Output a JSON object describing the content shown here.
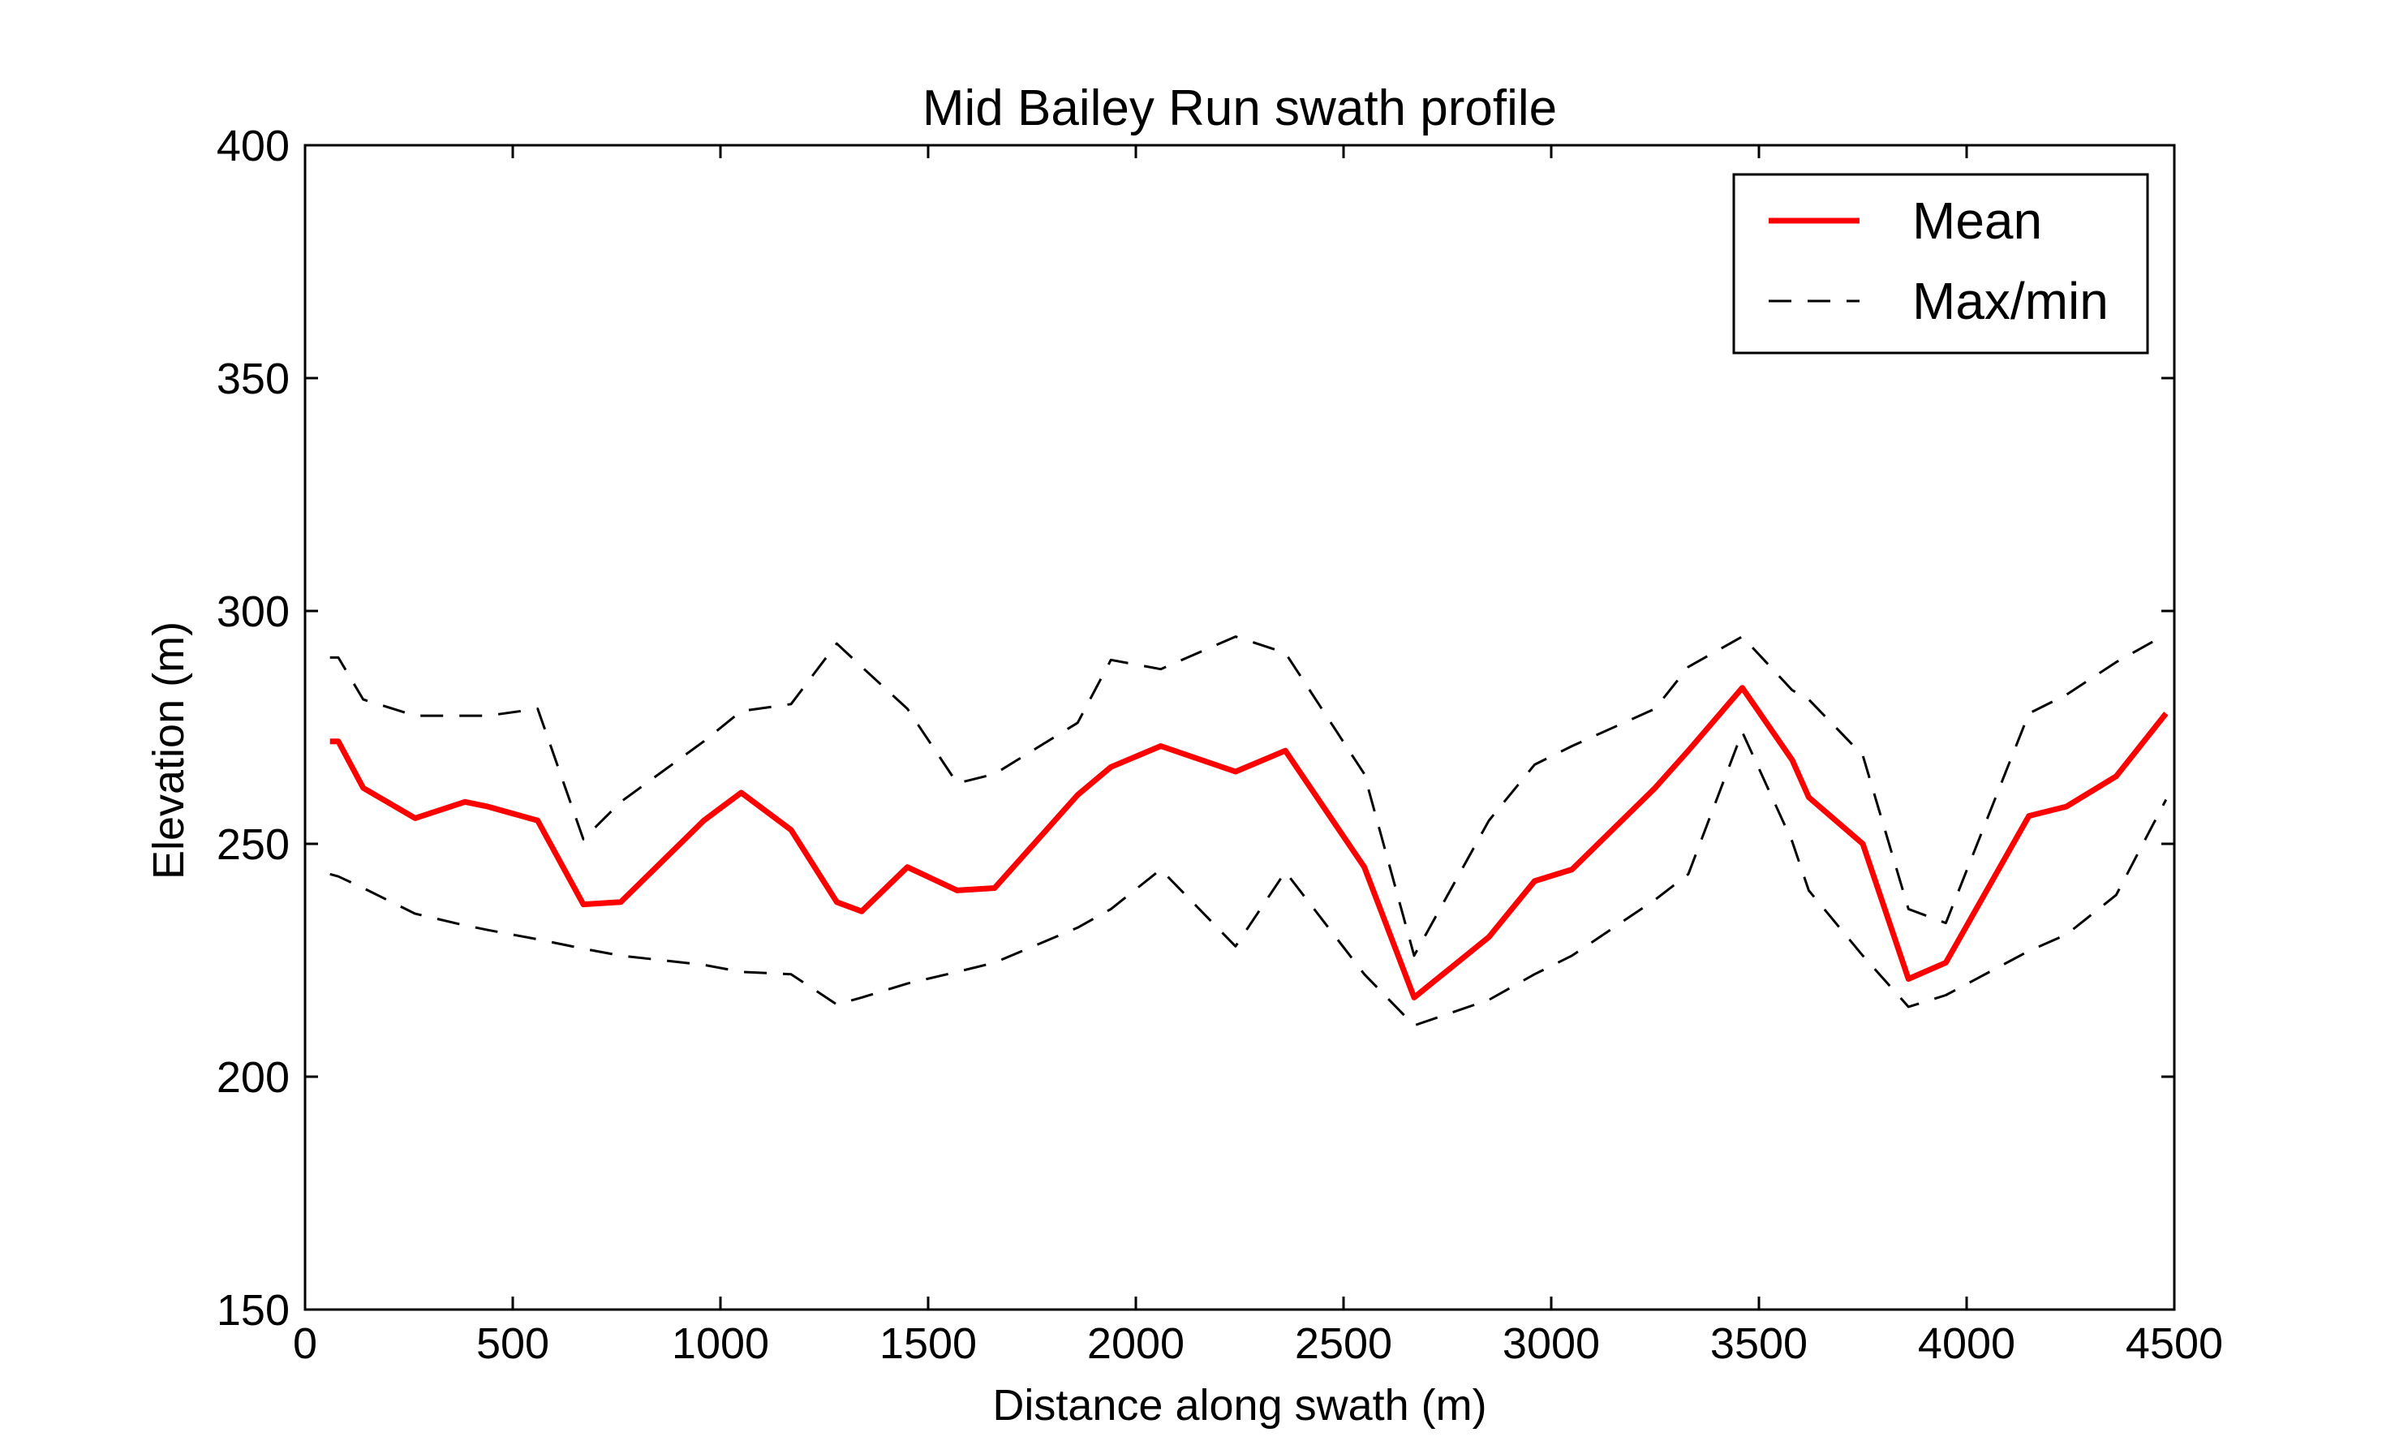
{
  "chart_data": {
    "type": "line",
    "title": "Mid Bailey Run swath profile",
    "xlabel": "Distance along swath (m)",
    "ylabel": "Elevation (m)",
    "xlim": [
      0,
      4500
    ],
    "ylim": [
      150,
      400
    ],
    "x_ticks": [
      0,
      500,
      1000,
      1500,
      2000,
      2500,
      3000,
      3500,
      4000,
      4500
    ],
    "y_ticks": [
      150,
      200,
      250,
      300,
      350,
      400
    ],
    "x_tick_labels": [
      "0",
      "500",
      "1000",
      "1500",
      "2000",
      "2500",
      "3000",
      "3500",
      "4000",
      "4500"
    ],
    "y_tick_labels": [
      "150",
      "200",
      "250",
      "300",
      "350",
      "400"
    ],
    "grid": false,
    "legend_position": "top-right",
    "legend": [
      {
        "label": "Mean",
        "style": "solid",
        "color": "#ff0000"
      },
      {
        "label": "Max/min",
        "style": "dashed",
        "color": "#000000"
      }
    ],
    "series": [
      {
        "name": "Mean",
        "role": "mean",
        "color": "#ff0000",
        "style": "solid",
        "x": [
          60,
          80,
          140,
          265,
          385,
          440,
          560,
          670,
          760,
          960,
          1050,
          1170,
          1280,
          1340,
          1450,
          1570,
          1660,
          1860,
          1940,
          2060,
          2240,
          2360,
          2550,
          2670,
          2850,
          2960,
          3050,
          3250,
          3330,
          3460,
          3580,
          3620,
          3750,
          3860,
          3950,
          4150,
          4240,
          4360,
          4480
        ],
        "y": [
          272,
          272,
          262,
          255.5,
          259,
          258,
          255,
          237,
          237.5,
          255,
          261,
          253,
          237.5,
          235.5,
          245,
          240,
          240.5,
          260.5,
          266.5,
          271,
          265.5,
          270,
          245,
          217,
          230,
          242,
          244.5,
          262,
          270,
          283.5,
          268,
          260,
          250,
          221,
          224.5,
          256,
          258,
          264.5,
          278
        ]
      },
      {
        "name": "Max/min",
        "role": "max",
        "color": "#000000",
        "style": "dashed",
        "x": [
          60,
          80,
          140,
          265,
          385,
          440,
          560,
          670,
          760,
          960,
          1050,
          1170,
          1280,
          1340,
          1450,
          1570,
          1660,
          1860,
          1940,
          2060,
          2240,
          2360,
          2550,
          2670,
          2850,
          2960,
          3050,
          3250,
          3330,
          3460,
          3580,
          3620,
          3750,
          3860,
          3950,
          4150,
          4240,
          4360,
          4480
        ],
        "y": [
          290,
          290,
          281,
          277.5,
          277.5,
          277.5,
          279,
          251,
          259,
          272,
          278.5,
          280,
          293,
          288,
          279,
          263,
          265,
          276,
          289.5,
          287.5,
          294.5,
          291,
          265,
          226,
          255,
          267,
          271,
          279,
          288,
          294.5,
          283,
          281,
          269,
          236,
          233,
          278,
          282,
          289,
          295
        ]
      },
      {
        "name": "Max/min",
        "role": "min",
        "color": "#000000",
        "style": "dashed",
        "x": [
          60,
          80,
          140,
          265,
          385,
          440,
          560,
          670,
          760,
          960,
          1050,
          1170,
          1280,
          1340,
          1450,
          1570,
          1660,
          1860,
          1940,
          2060,
          2240,
          2360,
          2550,
          2670,
          2850,
          2960,
          3050,
          3250,
          3330,
          3460,
          3580,
          3620,
          3750,
          3860,
          3950,
          4150,
          4240,
          4360,
          4480
        ],
        "y": [
          243.5,
          243,
          240.5,
          235,
          232.5,
          231.5,
          229.5,
          227.5,
          226,
          224,
          222.5,
          222,
          215.5,
          217,
          220,
          222.5,
          224.5,
          232,
          236,
          244.5,
          228,
          244,
          222,
          211,
          216.5,
          222,
          226,
          238,
          243.5,
          274,
          250.5,
          240,
          226,
          215,
          217.5,
          227,
          230.5,
          239,
          259.5
        ]
      }
    ]
  }
}
